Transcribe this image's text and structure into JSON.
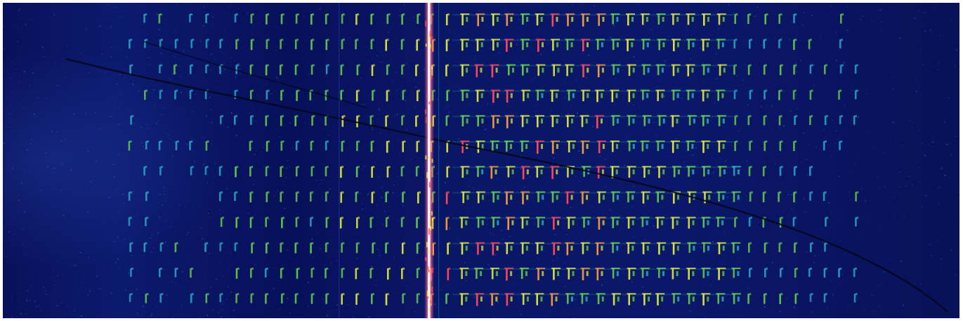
{
  "image": {
    "kind": "spectrogram-waterfall",
    "colors": {
      "background": "#07105a",
      "noise_low": "#1a2f86",
      "noise_high": "#2f4fb8",
      "mark_cyan": "#2fc6d8",
      "mark_green": "#6ee04a",
      "mark_yellow": "#e6f23a",
      "mark_orange": "#f29a3a",
      "mark_red": "#ff4a55",
      "carrier_pink": "#ff5a8a",
      "carrier_core": "#fff2f6",
      "trace_dark": "#030614"
    },
    "visible_text": []
  }
}
